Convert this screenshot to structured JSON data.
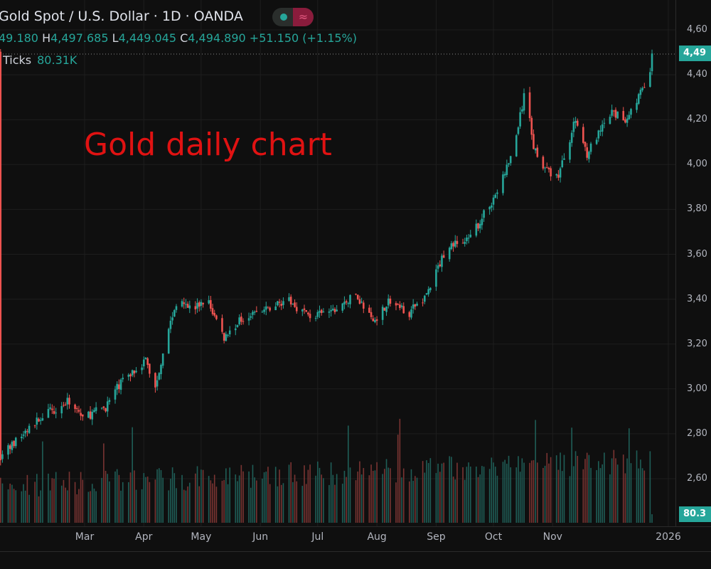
{
  "header": {
    "title": "Gold Spot / U.S. Dollar · 1D · OANDA",
    "ohlc": {
      "o_partial": "49.180",
      "h_label": "H",
      "h": "4,497.685",
      "l_label": "L",
      "l": "4,449.045",
      "c_label": "C",
      "c": "4,494.890",
      "change": "+51.150 (+1.15%)"
    },
    "ticks_label": "Ticks",
    "ticks_value": "80.31K",
    "wave_icon": "≈"
  },
  "annotation": "Gold daily chart",
  "price_label": "4,49",
  "volume_label": "80.3",
  "colors": {
    "up": "#26a69a",
    "down": "#ef5350",
    "background": "#0f0f0f",
    "annotation": "#e01212"
  },
  "chart_data": {
    "type": "candlestick",
    "title": "Gold Spot / U.S. Dollar · 1D · OANDA",
    "y_ticks": [
      "4,60",
      "4,40",
      "4,20",
      "4,00",
      "3,80",
      "3,60",
      "3,40",
      "3,20",
      "3,00",
      "2,80",
      "2,60"
    ],
    "y_tick_values": [
      4600,
      4400,
      4200,
      4000,
      3800,
      3600,
      3400,
      3200,
      3000,
      2800,
      2600
    ],
    "x_ticks": [
      "Mar",
      "Apr",
      "May",
      "Jun",
      "Jul",
      "Aug",
      "Sep",
      "Oct",
      "Nov",
      "2026"
    ],
    "x_tick_dates": [
      "2025-03-01",
      "2025-04-01",
      "2025-05-01",
      "2025-06-01",
      "2025-07-01",
      "2025-08-01",
      "2025-09-01",
      "2025-10-01",
      "2025-11-01",
      "2026-01-01"
    ],
    "ylim": [
      2540,
      4640
    ],
    "last_close": 4494.89,
    "approx_closes": [
      {
        "date": "2025-01-16",
        "close": 2700
      },
      {
        "date": "2025-02-07",
        "close": 2880
      },
      {
        "date": "2025-02-22",
        "close": 2950
      },
      {
        "date": "2025-02-28",
        "close": 2870
      },
      {
        "date": "2025-03-12",
        "close": 2920
      },
      {
        "date": "2025-03-20",
        "close": 3030
      },
      {
        "date": "2025-04-02",
        "close": 3130
      },
      {
        "date": "2025-04-07",
        "close": 3000
      },
      {
        "date": "2025-04-13",
        "close": 3250
      },
      {
        "date": "2025-04-20",
        "close": 3420
      },
      {
        "date": "2025-04-26",
        "close": 3350
      },
      {
        "date": "2025-05-04",
        "close": 3400
      },
      {
        "date": "2025-05-13",
        "close": 3230
      },
      {
        "date": "2025-05-24",
        "close": 3330
      },
      {
        "date": "2025-06-04",
        "close": 3350
      },
      {
        "date": "2025-06-14",
        "close": 3400
      },
      {
        "date": "2025-06-28",
        "close": 3320
      },
      {
        "date": "2025-07-10",
        "close": 3350
      },
      {
        "date": "2025-07-21",
        "close": 3420
      },
      {
        "date": "2025-07-30",
        "close": 3300
      },
      {
        "date": "2025-08-07",
        "close": 3390
      },
      {
        "date": "2025-08-18",
        "close": 3340
      },
      {
        "date": "2025-08-27",
        "close": 3420
      },
      {
        "date": "2025-09-07",
        "close": 3640
      },
      {
        "date": "2025-09-18",
        "close": 3660
      },
      {
        "date": "2025-10-03",
        "close": 3880
      },
      {
        "date": "2025-10-11",
        "close": 4050
      },
      {
        "date": "2025-10-18",
        "close": 4340
      },
      {
        "date": "2025-10-22",
        "close": 4080
      },
      {
        "date": "2025-10-29",
        "close": 3970
      },
      {
        "date": "2025-11-04",
        "close": 3950
      },
      {
        "date": "2025-11-13",
        "close": 4200
      },
      {
        "date": "2025-11-19",
        "close": 4050
      },
      {
        "date": "2025-12-02",
        "close": 4230
      },
      {
        "date": "2025-12-09",
        "close": 4200
      },
      {
        "date": "2025-12-17",
        "close": 4320
      },
      {
        "date": "2025-12-21",
        "close": 4350
      },
      {
        "date": "2025-12-23",
        "close": 4494.89
      }
    ]
  }
}
